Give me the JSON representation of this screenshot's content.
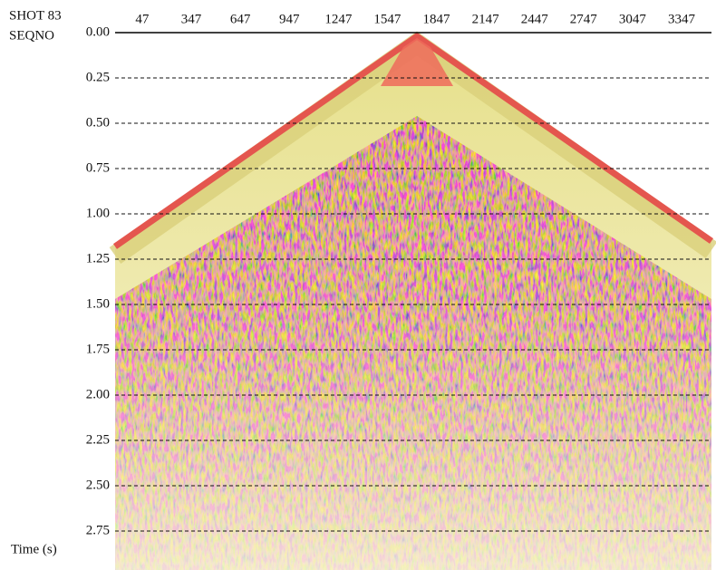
{
  "chart_data": {
    "type": "seismic",
    "title": "SHOT 83",
    "x_label": "SEQNO",
    "y_label": "Time (s)",
    "xlim": [
      -119,
      3530
    ],
    "xticks": [
      47,
      347,
      647,
      947,
      1247,
      1547,
      1847,
      2147,
      2447,
      2747,
      3047,
      3347
    ],
    "ylim": [
      0,
      2.965
    ],
    "yticks": [
      {
        "value": 0,
        "label": "0.00"
      },
      0.25,
      {
        "value": 0.5,
        "label": "0.50"
      },
      0.75,
      {
        "value": 1,
        "label": "1.00"
      },
      1.25,
      {
        "value": 1.5,
        "label": "1.50"
      },
      1.75,
      {
        "value": 2,
        "label": "2.00"
      },
      2.25,
      {
        "value": 2.5,
        "label": "2.50"
      },
      2.75
    ],
    "grid": true
  }
}
